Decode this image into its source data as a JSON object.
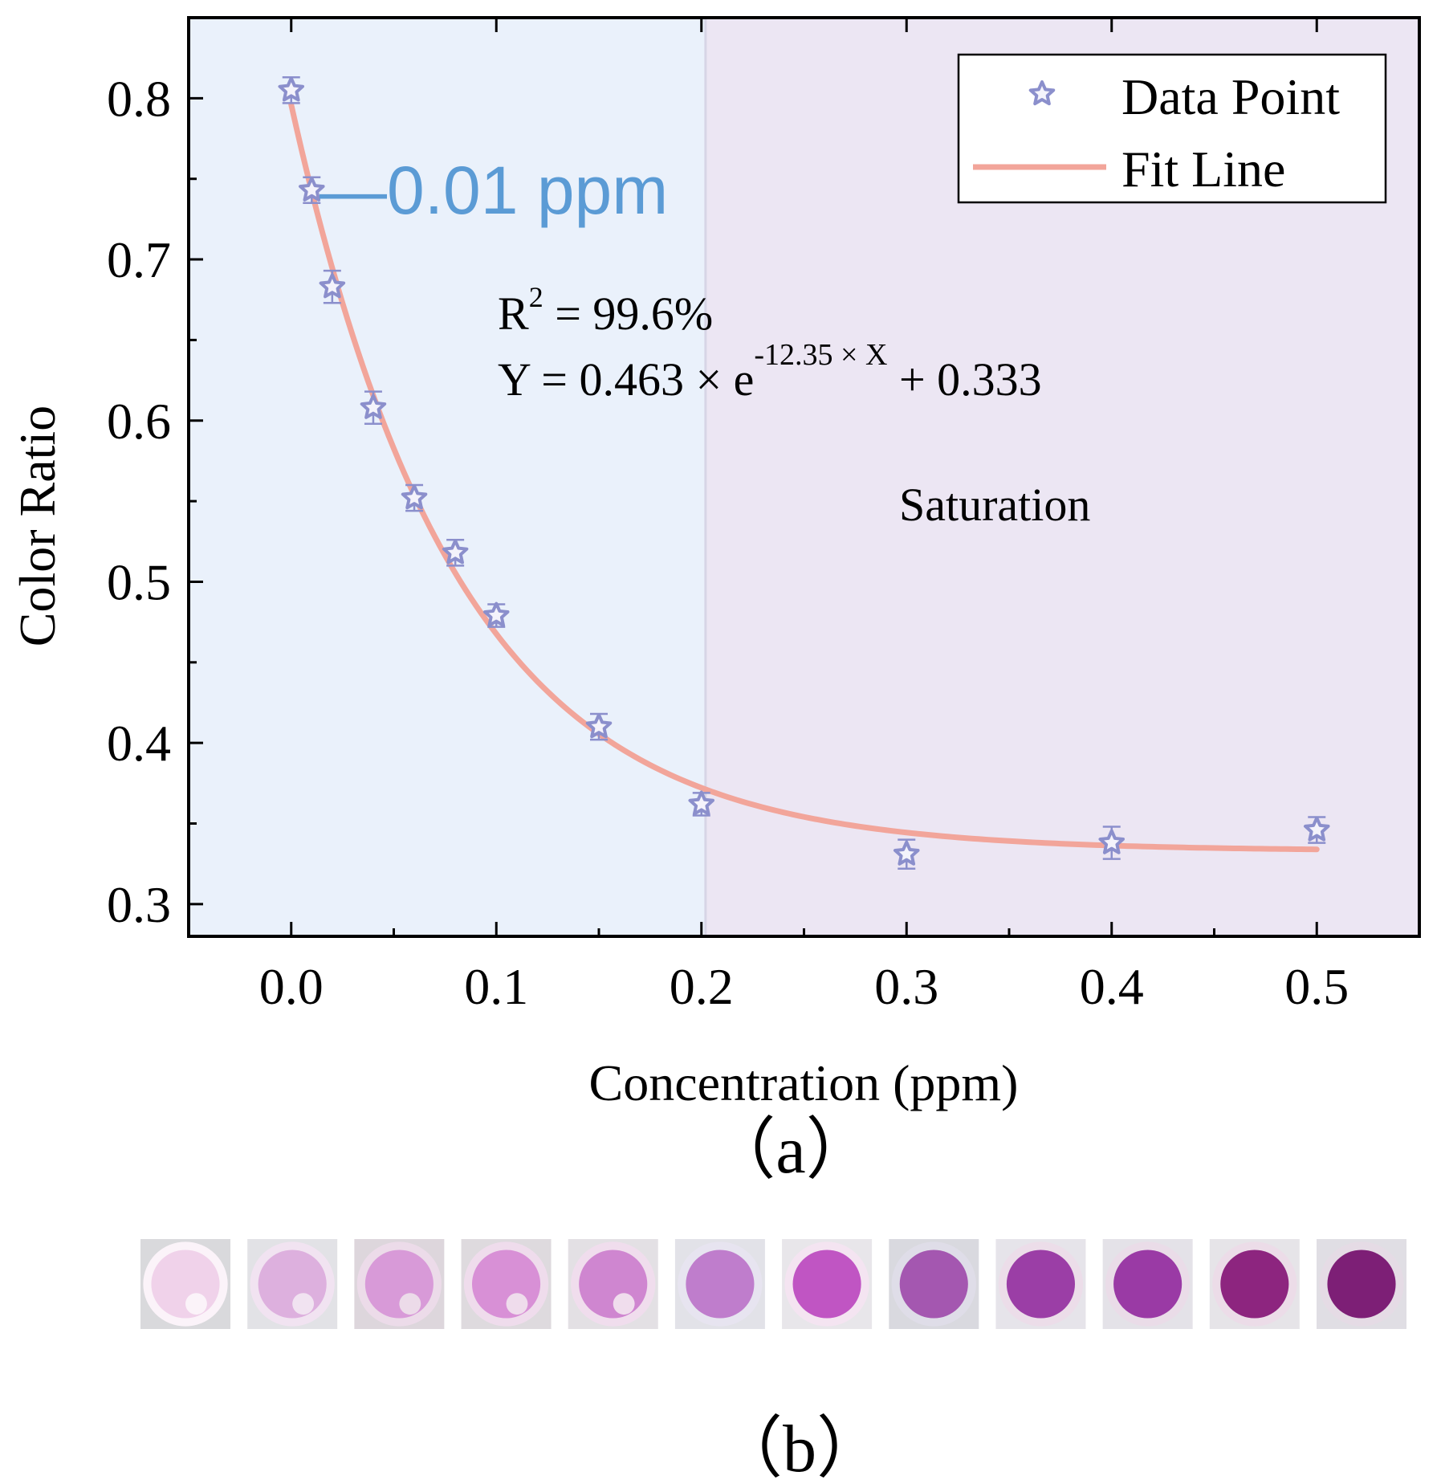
{
  "chart_data": {
    "type": "scatter",
    "title": "",
    "xlabel": "Concentration (ppm)",
    "ylabel": "Color Ratio",
    "xlim": [
      -0.05,
      0.55
    ],
    "ylim": [
      0.28,
      0.85
    ],
    "xticks": [
      0.0,
      0.1,
      0.2,
      0.3,
      0.4,
      0.5
    ],
    "xtick_labels": [
      "0.0",
      "0.1",
      "0.2",
      "0.3",
      "0.4",
      "0.5"
    ],
    "yticks": [
      0.3,
      0.4,
      0.5,
      0.6,
      0.7,
      0.8
    ],
    "ytick_labels": [
      "0.3",
      "0.4",
      "0.5",
      "0.6",
      "0.7",
      "0.8"
    ],
    "grid": false,
    "legend_position": "top-right",
    "series": [
      {
        "name": "Data Point",
        "marker": "star",
        "color": "#8b8fcc",
        "x": [
          0.0,
          0.01,
          0.02,
          0.04,
          0.06,
          0.08,
          0.1,
          0.15,
          0.2,
          0.3,
          0.4,
          0.5
        ],
        "y": [
          0.805,
          0.743,
          0.683,
          0.608,
          0.552,
          0.518,
          0.479,
          0.41,
          0.362,
          0.331,
          0.338,
          0.346
        ],
        "yerr": [
          0.008,
          0.008,
          0.01,
          0.01,
          0.008,
          0.008,
          0.007,
          0.008,
          0.007,
          0.009,
          0.01,
          0.008
        ]
      },
      {
        "name": "Fit Line",
        "type": "line",
        "color": "#f2a59a",
        "model": "exponential",
        "a": 0.463,
        "b": 12.35,
        "c": 0.333,
        "x_range": [
          0.0,
          0.5
        ]
      }
    ],
    "regions": [
      {
        "name": "detection",
        "x_range": [
          -0.05,
          0.202
        ],
        "color": "#eaf1fb"
      },
      {
        "name": "saturation",
        "x_range": [
          0.202,
          0.55
        ],
        "color": "#ece6f3"
      }
    ],
    "annotations": {
      "detection_limit": "—0.01 ppm",
      "r2_label": "R",
      "r2_sup": "2",
      "r2_value": " = 99.6%",
      "eq_left": "Y  = 0.463 × e",
      "eq_exponent": "-12.35 × X",
      "eq_right": " + 0.333",
      "saturation": "Saturation"
    }
  },
  "panel_labels": {
    "a": "（a）",
    "b": "（b）"
  },
  "swatches": {
    "colors": [
      "#f0d2ea",
      "#ddb0de",
      "#d89ad8",
      "#d890d6",
      "#cf86d0",
      "#bf7dcc",
      "#c055c3",
      "#a457b0",
      "#9b3ea6",
      "#9a3aa5",
      "#8d257f",
      "#7d1f76"
    ],
    "ring_colors": [
      "#fbf3f9",
      "#f1e3f1",
      "#ecdbe9",
      "#efdcec",
      "#f0dded",
      "#e7e4f0",
      "#f4e4f1",
      "#dfdde8",
      "#ecdde9",
      "#eadce8",
      "#ecdce8",
      "#e5dbe5"
    ],
    "bg_colors": [
      "#d9d9dc",
      "#e2e2e6",
      "#ddd6dc",
      "#dedade",
      "#e3e0e4",
      "#e2e2e8",
      "#e8e6ea",
      "#d9d9df",
      "#e6e4ea",
      "#e4e2e8",
      "#e6e4e8",
      "#e0dee4"
    ],
    "has_spot": [
      true,
      true,
      true,
      true,
      true,
      false,
      false,
      false,
      false,
      false,
      false,
      false
    ]
  }
}
